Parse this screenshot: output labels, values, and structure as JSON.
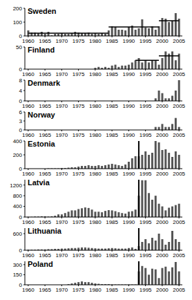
{
  "chart_data": [
    {
      "type": "bar",
      "title": "Sweden",
      "x": [
        1960,
        1961,
        1962,
        1963,
        1964,
        1965,
        1966,
        1967,
        1968,
        1969,
        1970,
        1971,
        1972,
        1973,
        1974,
        1975,
        1976,
        1977,
        1978,
        1979,
        1980,
        1981,
        1982,
        1983,
        1984,
        1985,
        1986,
        1987,
        1988,
        1989,
        1990,
        1991,
        1992,
        1993,
        1994,
        1995,
        1996,
        1997,
        1998,
        1999,
        2000,
        2001,
        2002,
        2003,
        2004,
        2005
      ],
      "values": [
        40,
        25,
        25,
        20,
        30,
        15,
        30,
        5,
        15,
        15,
        20,
        15,
        15,
        20,
        30,
        25,
        20,
        20,
        25,
        15,
        20,
        15,
        20,
        15,
        40,
        70,
        65,
        45,
        45,
        40,
        65,
        75,
        45,
        55,
        120,
        60,
        55,
        70,
        45,
        70,
        130,
        125,
        100,
        110,
        165,
        125
      ],
      "color": "#555555",
      "xlim": [
        1959,
        2006
      ],
      "xticks": [
        1960,
        1965,
        1970,
        1975,
        1980,
        1985,
        1990,
        1995,
        2000,
        2005
      ],
      "ylim": [
        0,
        200
      ],
      "yticks": [
        0,
        100,
        200
      ],
      "mean_segments": [
        {
          "x": [
            1960,
            1984
          ],
          "y": 20
        },
        {
          "x": [
            1984,
            1999
          ],
          "y": 65
        },
        {
          "x": [
            1999,
            2005
          ],
          "y": 110
        }
      ]
    },
    {
      "type": "bar",
      "title": "Finland",
      "x": [
        1960,
        1961,
        1962,
        1963,
        1964,
        1965,
        1966,
        1967,
        1968,
        1969,
        1970,
        1971,
        1972,
        1973,
        1974,
        1975,
        1976,
        1977,
        1978,
        1979,
        1980,
        1981,
        1982,
        1983,
        1984,
        1985,
        1986,
        1987,
        1988,
        1989,
        1990,
        1991,
        1992,
        1993,
        1994,
        1995,
        1996,
        1997,
        1998,
        1999,
        2000,
        2001,
        2002,
        2003,
        2004,
        2005
      ],
      "values": [
        0,
        0,
        0,
        0,
        0,
        0,
        0,
        0,
        0,
        0,
        0,
        0,
        0,
        0,
        0,
        0,
        0,
        0,
        0,
        0,
        3,
        5,
        3,
        5,
        3,
        8,
        10,
        5,
        8,
        8,
        10,
        15,
        20,
        25,
        15,
        20,
        15,
        20,
        20,
        10,
        25,
        40,
        35,
        40,
        20,
        35
      ],
      "color": "#555555",
      "xlim": [
        1959,
        2006
      ],
      "xticks": [
        1960,
        1965,
        1970,
        1975,
        1980,
        1985,
        1990,
        1995,
        2000,
        2005
      ],
      "ylim": [
        0,
        50
      ],
      "yticks": [
        0,
        50
      ],
      "mean_segments": [
        {
          "x": [
            1992,
            1999
          ],
          "y": 20
        },
        {
          "x": [
            1999,
            2005
          ],
          "y": 30
        }
      ]
    },
    {
      "type": "bar",
      "title": "Denmark",
      "x": [
        1960,
        1961,
        1962,
        1963,
        1964,
        1965,
        1966,
        1967,
        1968,
        1969,
        1970,
        1971,
        1972,
        1973,
        1974,
        1975,
        1976,
        1977,
        1978,
        1979,
        1980,
        1981,
        1982,
        1983,
        1984,
        1985,
        1986,
        1987,
        1988,
        1989,
        1990,
        1991,
        1992,
        1993,
        1994,
        1995,
        1996,
        1997,
        1998,
        1999,
        2000,
        2001,
        2002,
        2003,
        2004,
        2005
      ],
      "values": [
        0,
        0,
        0,
        0,
        0,
        0,
        0,
        0,
        0,
        0,
        0,
        0,
        0,
        0,
        0,
        0,
        0,
        0,
        0,
        0,
        0,
        0,
        0,
        0,
        0,
        0,
        0,
        0,
        0,
        0,
        0,
        0,
        0,
        0,
        0,
        0,
        0,
        0,
        1,
        4,
        3,
        1,
        1,
        2,
        4,
        8
      ],
      "color": "#555555",
      "xlim": [
        1959,
        2006
      ],
      "xticks": [
        1960,
        1965,
        1970,
        1975,
        1980,
        1985,
        1990,
        1995,
        2000,
        2005
      ],
      "ylim": [
        0,
        8
      ],
      "yticks": [
        0,
        4,
        8
      ]
    },
    {
      "type": "bar",
      "title": "Norway",
      "x": [
        1960,
        1961,
        1962,
        1963,
        1964,
        1965,
        1966,
        1967,
        1968,
        1969,
        1970,
        1971,
        1972,
        1973,
        1974,
        1975,
        1976,
        1977,
        1978,
        1979,
        1980,
        1981,
        1982,
        1983,
        1984,
        1985,
        1986,
        1987,
        1988,
        1989,
        1990,
        1991,
        1992,
        1993,
        1994,
        1995,
        1996,
        1997,
        1998,
        1999,
        2000,
        2001,
        2002,
        2003,
        2004,
        2005
      ],
      "values": [
        0,
        0,
        0,
        0,
        0,
        0,
        0,
        0,
        0,
        0,
        0,
        0,
        0,
        0,
        0,
        0,
        0,
        0,
        0,
        0,
        0,
        0,
        0,
        0,
        0,
        0,
        0,
        0,
        0,
        0,
        0,
        0,
        0,
        0,
        0,
        0,
        0,
        0,
        1,
        1,
        2,
        1,
        1,
        2,
        4,
        1
      ],
      "color": "#555555",
      "xlim": [
        1959,
        2006
      ],
      "xticks": [
        1960,
        1965,
        1970,
        1975,
        1980,
        1985,
        1990,
        1995,
        2000,
        2005
      ],
      "ylim": [
        0,
        6
      ],
      "yticks": [
        0,
        3,
        6
      ]
    },
    {
      "type": "bar",
      "title": "Estonia",
      "x": [
        1960,
        1961,
        1962,
        1963,
        1964,
        1965,
        1966,
        1967,
        1968,
        1969,
        1970,
        1971,
        1972,
        1973,
        1974,
        1975,
        1976,
        1977,
        1978,
        1979,
        1980,
        1981,
        1982,
        1983,
        1984,
        1985,
        1986,
        1987,
        1988,
        1989,
        1990,
        1991,
        1992,
        1993,
        1994,
        1995,
        1996,
        1997,
        1998,
        1999,
        2000,
        2001,
        2002,
        2003,
        2004,
        2005
      ],
      "values": [
        0,
        0,
        0,
        0,
        0,
        0,
        5,
        5,
        5,
        5,
        10,
        10,
        15,
        20,
        20,
        30,
        40,
        40,
        50,
        40,
        40,
        50,
        40,
        50,
        60,
        70,
        60,
        50,
        40,
        60,
        100,
        150,
        180,
        180,
        200,
        250,
        200,
        230,
        400,
        380,
        270,
        280,
        230,
        170,
        250,
        200
      ],
      "color": "#555555",
      "xlim": [
        1959,
        2006
      ],
      "xticks": [
        1960,
        1965,
        1970,
        1975,
        1980,
        1985,
        1990,
        1995,
        2000,
        2005
      ],
      "ylim": [
        0,
        400
      ],
      "yticks": [
        0,
        200,
        400
      ],
      "vline": 1993
    },
    {
      "type": "bar",
      "title": "Latvia",
      "x": [
        1960,
        1961,
        1962,
        1963,
        1964,
        1965,
        1966,
        1967,
        1968,
        1969,
        1970,
        1971,
        1972,
        1973,
        1974,
        1975,
        1976,
        1977,
        1978,
        1979,
        1980,
        1981,
        1982,
        1983,
        1984,
        1985,
        1986,
        1987,
        1988,
        1989,
        1990,
        1991,
        1992,
        1993,
        1994,
        1995,
        1996,
        1997,
        1998,
        1999,
        2000,
        2001,
        2002,
        2003,
        2004,
        2005
      ],
      "values": [
        10,
        10,
        20,
        20,
        30,
        30,
        20,
        30,
        50,
        100,
        100,
        150,
        200,
        250,
        250,
        300,
        330,
        360,
        340,
        280,
        200,
        200,
        180,
        230,
        260,
        250,
        220,
        180,
        150,
        130,
        200,
        220,
        280,
        800,
        1380,
        1380,
        900,
        650,
        800,
        500,
        400,
        250,
        350,
        400,
        450,
        500
      ],
      "color": "#555555",
      "xlim": [
        1959,
        2006
      ],
      "xticks": [
        1960,
        1965,
        1970,
        1975,
        1980,
        1985,
        1990,
        1995,
        2000,
        2005
      ],
      "ylim": [
        0,
        1400
      ],
      "yticks": [
        0,
        400,
        800,
        1200
      ],
      "vline": 1993
    },
    {
      "type": "bar",
      "title": "Lithuania",
      "x": [
        1960,
        1961,
        1962,
        1963,
        1964,
        1965,
        1966,
        1967,
        1968,
        1969,
        1970,
        1971,
        1972,
        1973,
        1974,
        1975,
        1976,
        1977,
        1978,
        1979,
        1980,
        1981,
        1982,
        1983,
        1984,
        1985,
        1986,
        1987,
        1988,
        1989,
        1990,
        1991,
        1992,
        1993,
        1994,
        1995,
        1996,
        1997,
        1998,
        1999,
        2000,
        2001,
        2002,
        2003,
        2004,
        2005
      ],
      "values": [
        20,
        20,
        20,
        30,
        30,
        30,
        40,
        40,
        50,
        50,
        60,
        60,
        70,
        80,
        80,
        90,
        100,
        100,
        90,
        80,
        70,
        60,
        60,
        60,
        70,
        80,
        70,
        60,
        60,
        60,
        80,
        100,
        50,
        150,
        300,
        400,
        250,
        450,
        350,
        600,
        400,
        200,
        300,
        700,
        400,
        300
      ],
      "color": "#555555",
      "xlim": [
        1959,
        2006
      ],
      "xticks": [
        1960,
        1965,
        1970,
        1975,
        1980,
        1985,
        1990,
        1995,
        2000,
        2005
      ],
      "ylim": [
        0,
        800
      ],
      "yticks": [
        0,
        600
      ],
      "vline": 1993
    },
    {
      "type": "bar",
      "title": "Poland",
      "x": [
        1960,
        1961,
        1962,
        1963,
        1964,
        1965,
        1966,
        1967,
        1968,
        1969,
        1970,
        1971,
        1972,
        1973,
        1974,
        1975,
        1976,
        1977,
        1978,
        1979,
        1980,
        1981,
        1982,
        1983,
        1984,
        1985,
        1986,
        1987,
        1988,
        1989,
        1990,
        1991,
        1992,
        1993,
        1994,
        1995,
        1996,
        1997,
        1998,
        1999,
        2000,
        2001,
        2002,
        2003,
        2004,
        2005
      ],
      "values": [
        0,
        0,
        0,
        0,
        0,
        0,
        0,
        0,
        0,
        0,
        0,
        0,
        10,
        20,
        30,
        40,
        50,
        40,
        40,
        30,
        20,
        15,
        10,
        10,
        10,
        5,
        5,
        5,
        5,
        5,
        5,
        5,
        5,
        200,
        280,
        250,
        150,
        240,
        230,
        100,
        250,
        270,
        200,
        260,
        340,
        200
      ],
      "color": "#555555",
      "xlim": [
        1959,
        2006
      ],
      "xticks": [
        1960,
        1965,
        1970,
        1975,
        1980,
        1985,
        1990,
        1995,
        2000,
        2005
      ],
      "ylim": [
        0,
        350
      ],
      "yticks": [
        0,
        150,
        300
      ],
      "vline": 1993
    }
  ]
}
